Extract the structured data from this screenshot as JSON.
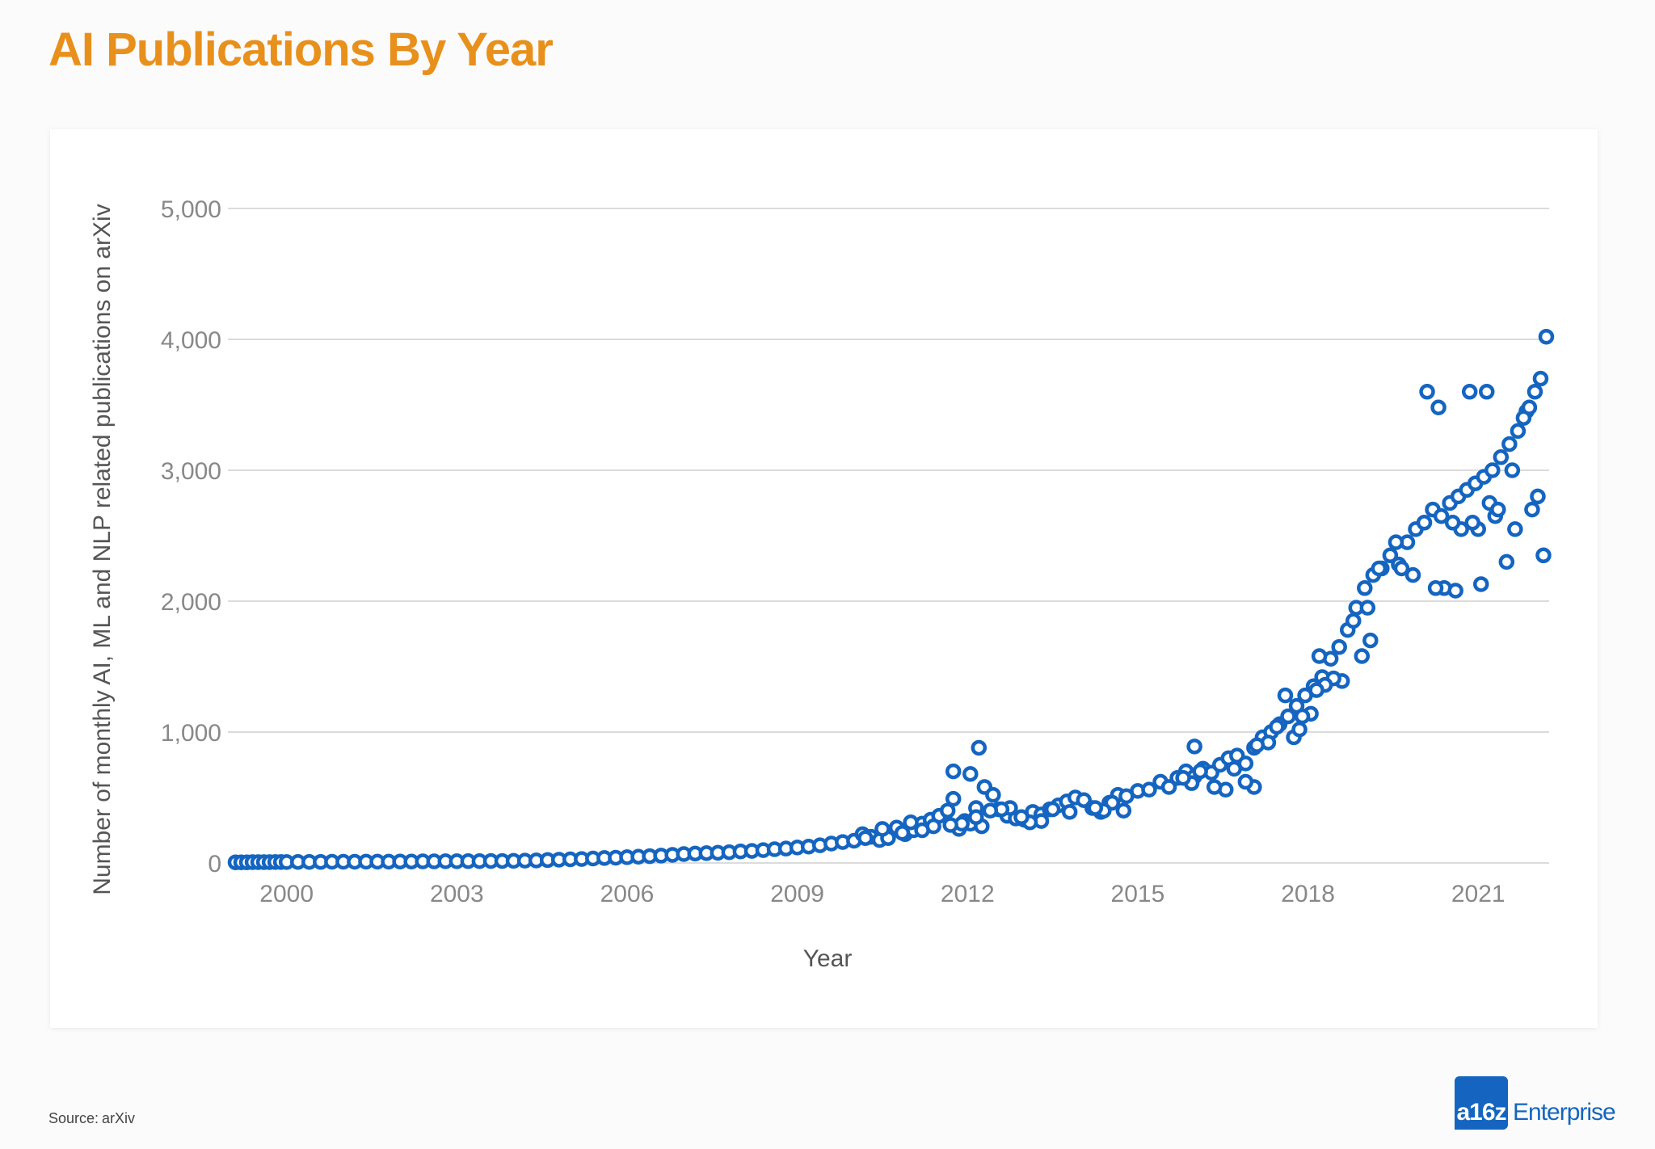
{
  "title": "AI Publications By Year",
  "source": {
    "label": "Source:",
    "value": "arXiv"
  },
  "brand": {
    "badge": "a16z",
    "word": "Enterprise"
  },
  "colors": {
    "title": "#e8901c",
    "points": "#1565c0",
    "grid": "#cfcfcf",
    "tick": "#888888"
  },
  "chart_data": {
    "type": "scatter",
    "xlabel": "Year",
    "ylabel": "Number of monthly AI, ML and NLP related publications on arXiv",
    "xlim": [
      1999.25,
      2022.25
    ],
    "ylim": [
      0,
      5000
    ],
    "grid": true,
    "x_ticks": [
      {
        "value": 2000,
        "label": "2000"
      },
      {
        "value": 2003,
        "label": "2003"
      },
      {
        "value": 2006,
        "label": "2006"
      },
      {
        "value": 2009,
        "label": "2009"
      },
      {
        "value": 2012,
        "label": "2012"
      },
      {
        "value": 2015,
        "label": "2015"
      },
      {
        "value": 2018,
        "label": "2018"
      },
      {
        "value": 2021,
        "label": "2021"
      }
    ],
    "y_ticks": [
      {
        "value": 0,
        "label": "0"
      },
      {
        "value": 1000,
        "label": "1,000"
      },
      {
        "value": 2000,
        "label": "2,000"
      },
      {
        "value": 3000,
        "label": "3,000"
      },
      {
        "value": 4000,
        "label": "4,000"
      },
      {
        "value": 5000,
        "label": "5,000"
      }
    ],
    "series": [
      {
        "points": [
          [
            1999.1,
            5
          ],
          [
            1999.2,
            5
          ],
          [
            1999.3,
            5
          ],
          [
            1999.4,
            6
          ],
          [
            1999.5,
            6
          ],
          [
            1999.6,
            6
          ],
          [
            1999.7,
            6
          ],
          [
            1999.8,
            7
          ],
          [
            1999.9,
            7
          ],
          [
            2000.0,
            7
          ],
          [
            2000.2,
            8
          ],
          [
            2000.4,
            8
          ],
          [
            2000.6,
            8
          ],
          [
            2000.8,
            9
          ],
          [
            2001.0,
            9
          ],
          [
            2001.2,
            9
          ],
          [
            2001.4,
            10
          ],
          [
            2001.6,
            10
          ],
          [
            2001.8,
            10
          ],
          [
            2002.0,
            11
          ],
          [
            2002.2,
            11
          ],
          [
            2002.4,
            12
          ],
          [
            2002.6,
            12
          ],
          [
            2002.8,
            13
          ],
          [
            2003.0,
            13
          ],
          [
            2003.2,
            14
          ],
          [
            2003.4,
            14
          ],
          [
            2003.6,
            15
          ],
          [
            2003.8,
            15
          ],
          [
            2004.0,
            16
          ],
          [
            2004.2,
            18
          ],
          [
            2004.4,
            19
          ],
          [
            2004.6,
            22
          ],
          [
            2004.8,
            25
          ],
          [
            2005.0,
            28
          ],
          [
            2005.2,
            30
          ],
          [
            2005.4,
            34
          ],
          [
            2005.6,
            38
          ],
          [
            2005.8,
            40
          ],
          [
            2006.0,
            44
          ],
          [
            2006.2,
            48
          ],
          [
            2006.4,
            52
          ],
          [
            2006.6,
            56
          ],
          [
            2006.8,
            62
          ],
          [
            2007.0,
            68
          ],
          [
            2007.2,
            72
          ],
          [
            2007.4,
            75
          ],
          [
            2007.6,
            78
          ],
          [
            2007.8,
            82
          ],
          [
            2008.0,
            88
          ],
          [
            2008.2,
            92
          ],
          [
            2008.4,
            98
          ],
          [
            2008.6,
            105
          ],
          [
            2008.8,
            110
          ],
          [
            2009.0,
            118
          ],
          [
            2009.2,
            125
          ],
          [
            2009.4,
            135
          ],
          [
            2009.6,
            148
          ],
          [
            2009.8,
            160
          ],
          [
            2010.0,
            170
          ],
          [
            2010.15,
            220
          ],
          [
            2010.3,
            200
          ],
          [
            2010.45,
            175
          ],
          [
            2010.6,
            190
          ],
          [
            2010.75,
            270
          ],
          [
            2010.9,
            220
          ],
          [
            2011.05,
            250
          ],
          [
            2011.2,
            300
          ],
          [
            2011.35,
            330
          ],
          [
            2011.5,
            360
          ],
          [
            2011.65,
            400
          ],
          [
            2011.75,
            490
          ],
          [
            2011.85,
            260
          ],
          [
            2011.95,
            320
          ],
          [
            2012.05,
            300
          ],
          [
            2012.15,
            420
          ],
          [
            2012.3,
            580
          ],
          [
            2012.45,
            520
          ],
          [
            2012.55,
            410
          ],
          [
            2012.7,
            360
          ],
          [
            2012.85,
            340
          ],
          [
            2013.0,
            330
          ],
          [
            2013.15,
            390
          ],
          [
            2013.3,
            370
          ],
          [
            2013.45,
            410
          ],
          [
            2013.6,
            440
          ],
          [
            2013.75,
            470
          ],
          [
            2013.9,
            500
          ],
          [
            2014.05,
            480
          ],
          [
            2014.2,
            420
          ],
          [
            2014.35,
            390
          ],
          [
            2014.5,
            460
          ],
          [
            2014.65,
            520
          ],
          [
            2014.8,
            510
          ],
          [
            2015.0,
            550
          ],
          [
            2015.2,
            560
          ],
          [
            2015.4,
            620
          ],
          [
            2015.55,
            580
          ],
          [
            2015.7,
            650
          ],
          [
            2015.85,
            700
          ],
          [
            2016.0,
            660
          ],
          [
            2016.15,
            720
          ],
          [
            2016.3,
            690
          ],
          [
            2016.45,
            750
          ],
          [
            2016.6,
            800
          ],
          [
            2016.75,
            820
          ],
          [
            2016.9,
            760
          ],
          [
            2017.05,
            880
          ],
          [
            2017.2,
            960
          ],
          [
            2017.35,
            1000
          ],
          [
            2017.5,
            1060
          ],
          [
            2017.65,
            1120
          ],
          [
            2017.8,
            1200
          ],
          [
            2017.95,
            1280
          ],
          [
            2018.1,
            1350
          ],
          [
            2018.25,
            1420
          ],
          [
            2018.4,
            1560
          ],
          [
            2018.55,
            1650
          ],
          [
            2018.7,
            1780
          ],
          [
            2018.85,
            1950
          ],
          [
            2019.0,
            2100
          ],
          [
            2019.15,
            2200
          ],
          [
            2019.3,
            2250
          ],
          [
            2019.45,
            2350
          ],
          [
            2019.6,
            2280
          ],
          [
            2019.75,
            2450
          ],
          [
            2019.9,
            2550
          ],
          [
            2020.05,
            2600
          ],
          [
            2020.2,
            2700
          ],
          [
            2020.35,
            2650
          ],
          [
            2020.5,
            2750
          ],
          [
            2020.65,
            2800
          ],
          [
            2020.8,
            2850
          ],
          [
            2020.95,
            2900
          ],
          [
            2021.1,
            2950
          ],
          [
            2021.25,
            3000
          ],
          [
            2021.4,
            3100
          ],
          [
            2021.55,
            3200
          ],
          [
            2021.7,
            3300
          ],
          [
            2021.85,
            3450
          ],
          [
            2022.0,
            3600
          ],
          [
            2022.1,
            3700
          ],
          [
            2022.2,
            4020
          ],
          [
            2020.1,
            3600
          ],
          [
            2020.3,
            3480
          ],
          [
            2020.85,
            3600
          ],
          [
            2021.15,
            3600
          ],
          [
            2021.8,
            3400
          ],
          [
            2021.9,
            3480
          ],
          [
            2021.6,
            3000
          ],
          [
            2021.5,
            2300
          ],
          [
            2021.3,
            2650
          ],
          [
            2021.0,
            2550
          ],
          [
            2020.7,
            2550
          ],
          [
            2020.4,
            2100
          ],
          [
            2020.25,
            2100
          ],
          [
            2020.55,
            2600
          ],
          [
            2021.2,
            2750
          ],
          [
            2021.35,
            2700
          ],
          [
            2021.65,
            2550
          ],
          [
            2021.95,
            2700
          ],
          [
            2022.05,
            2800
          ],
          [
            2022.15,
            2350
          ],
          [
            2020.6,
            2080
          ],
          [
            2020.9,
            2600
          ],
          [
            2021.05,
            2130
          ],
          [
            2019.85,
            2200
          ],
          [
            2019.65,
            2250
          ],
          [
            2019.55,
            2450
          ],
          [
            2019.25,
            2250
          ],
          [
            2019.1,
            1700
          ],
          [
            2019.05,
            1950
          ],
          [
            2018.95,
            1580
          ],
          [
            2018.8,
            1850
          ],
          [
            2018.6,
            1390
          ],
          [
            2018.45,
            1410
          ],
          [
            2018.3,
            1360
          ],
          [
            2018.2,
            1580
          ],
          [
            2018.15,
            1320
          ],
          [
            2018.05,
            1140
          ],
          [
            2017.9,
            1120
          ],
          [
            2017.75,
            960
          ],
          [
            2017.85,
            1020
          ],
          [
            2017.6,
            1280
          ],
          [
            2017.45,
            1040
          ],
          [
            2017.3,
            920
          ],
          [
            2017.1,
            900
          ],
          [
            2017.05,
            580
          ],
          [
            2016.9,
            620
          ],
          [
            2016.7,
            720
          ],
          [
            2016.55,
            560
          ],
          [
            2016.35,
            580
          ],
          [
            2016.1,
            700
          ],
          [
            2016.0,
            890
          ],
          [
            2015.95,
            610
          ],
          [
            2015.8,
            650
          ],
          [
            2014.75,
            400
          ],
          [
            2014.55,
            460
          ],
          [
            2014.4,
            400
          ],
          [
            2014.25,
            420
          ],
          [
            2013.8,
            390
          ],
          [
            2013.5,
            410
          ],
          [
            2013.3,
            320
          ],
          [
            2013.1,
            310
          ],
          [
            2012.95,
            350
          ],
          [
            2012.75,
            420
          ],
          [
            2012.6,
            410
          ],
          [
            2012.4,
            400
          ],
          [
            2012.25,
            280
          ],
          [
            2012.15,
            350
          ],
          [
            2011.9,
            300
          ],
          [
            2011.7,
            290
          ],
          [
            2011.4,
            280
          ],
          [
            2011.2,
            250
          ],
          [
            2011.0,
            310
          ],
          [
            2010.85,
            230
          ],
          [
            2010.5,
            260
          ],
          [
            2010.2,
            190
          ],
          [
            2012.2,
            880
          ],
          [
            2011.75,
            700
          ],
          [
            2012.05,
            680
          ]
        ]
      }
    ]
  }
}
